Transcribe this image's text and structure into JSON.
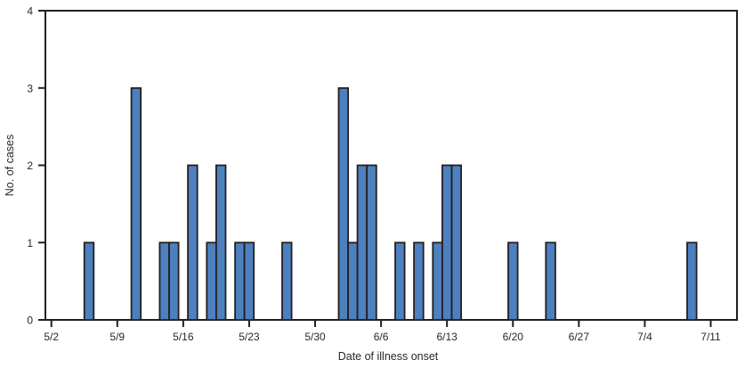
{
  "chart_data": {
    "type": "bar",
    "title": "",
    "xlabel": "Date of illness onset",
    "ylabel": "No. of cases",
    "x_tick_labels": [
      "5/2",
      "5/9",
      "5/16",
      "5/23",
      "5/30",
      "6/6",
      "6/13",
      "6/20",
      "6/27",
      "7/4",
      "7/11"
    ],
    "y_tick_labels": [
      "0",
      "1",
      "2",
      "3",
      "4"
    ],
    "ylim": [
      0,
      4
    ],
    "grid": "off",
    "legend": "none",
    "frame": "full-box",
    "bar_unit": "one bar per day of onset",
    "bars": [
      {
        "date": "5/6",
        "value": 1
      },
      {
        "date": "5/11",
        "value": 3
      },
      {
        "date": "5/14",
        "value": 1
      },
      {
        "date": "5/15",
        "value": 1
      },
      {
        "date": "5/17",
        "value": 2
      },
      {
        "date": "5/19",
        "value": 1
      },
      {
        "date": "5/20",
        "value": 2
      },
      {
        "date": "5/22",
        "value": 1
      },
      {
        "date": "5/23",
        "value": 1
      },
      {
        "date": "5/27",
        "value": 1
      },
      {
        "date": "6/2",
        "value": 3
      },
      {
        "date": "6/3",
        "value": 1
      },
      {
        "date": "6/4",
        "value": 2
      },
      {
        "date": "6/5",
        "value": 2
      },
      {
        "date": "6/8",
        "value": 1
      },
      {
        "date": "6/10",
        "value": 1
      },
      {
        "date": "6/12",
        "value": 1
      },
      {
        "date": "6/13",
        "value": 2
      },
      {
        "date": "6/14",
        "value": 2
      },
      {
        "date": "6/20",
        "value": 1
      },
      {
        "date": "6/24",
        "value": 1
      },
      {
        "date": "7/9",
        "value": 1
      }
    ],
    "colors": {
      "bar_fill": "#4d80be",
      "bar_border": "#231f20",
      "axis": "#231f20",
      "text": "#2a2627",
      "background": "#ffffff"
    }
  }
}
